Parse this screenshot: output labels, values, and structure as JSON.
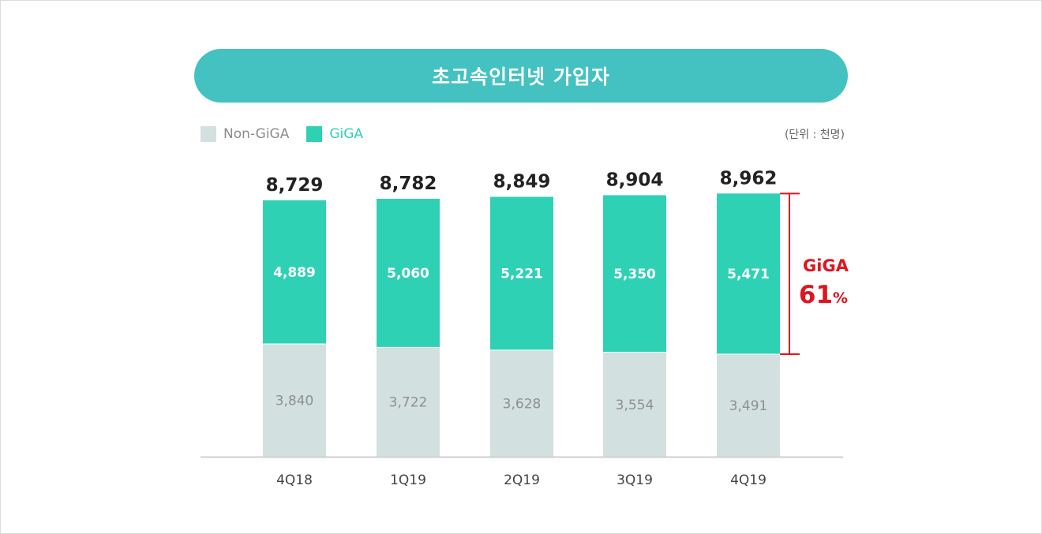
{
  "title": "초고속인터넷 가입자",
  "unit": "(단위 : 천명)",
  "legend": [
    {
      "name": "Non-GiGA",
      "color": "#d3e0e0",
      "text_color": "#8c8c8c"
    },
    {
      "name": "GiGA",
      "color": "#2fd1b5",
      "text_color": "#2fd1b5"
    }
  ],
  "chart_data": {
    "type": "bar",
    "stacked": true,
    "title": "초고속인터넷 가입자",
    "categories": [
      "4Q18",
      "1Q19",
      "2Q19",
      "3Q19",
      "4Q19"
    ],
    "series": [
      {
        "name": "Non-GiGA",
        "values": [
          3840,
          3722,
          3628,
          3554,
          3491
        ],
        "color": "#d3e0e0"
      },
      {
        "name": "GiGA",
        "values": [
          4889,
          5060,
          5221,
          5350,
          5471
        ],
        "color": "#2fd1b5"
      }
    ],
    "totals": [
      8729,
      8782,
      8849,
      8904,
      8962
    ],
    "annotation": {
      "label": "GiGA",
      "value": "61",
      "suffix": "%",
      "color": "#e0141e"
    },
    "legend_position": "top-left",
    "grid": false
  }
}
